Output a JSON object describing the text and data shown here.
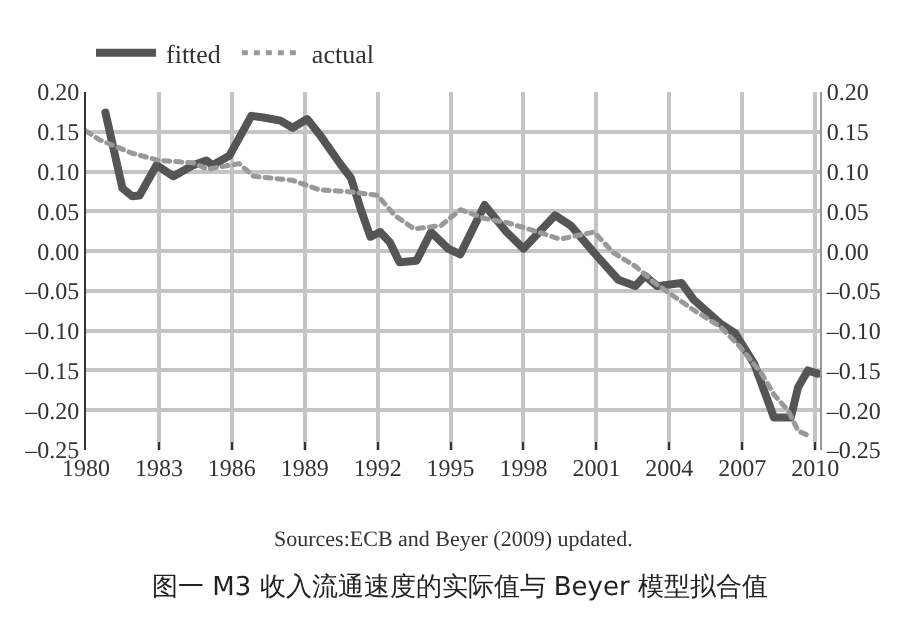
{
  "chart_data": {
    "type": "line",
    "title": "图一 M3 收入流通速度的实际值与 Beyer 模型拟合值",
    "annotations": [
      "Sources:ECB and Beyer (2009) updated."
    ],
    "series": [
      {
        "name": "fitted",
        "color": "#555555",
        "line_style": "solid",
        "x": [
          1980.8,
          1981.5,
          1981.9,
          1982.2,
          1982.9,
          1983.6,
          1984.4,
          1984.95,
          1985.2,
          1985.9,
          1986.3,
          1986.8,
          1987.3,
          1988.0,
          1988.5,
          1989.1,
          1989.6,
          1990.5,
          1990.9,
          1991.3,
          1991.7,
          1992.1,
          1992.5,
          1992.9,
          1993.6,
          1994.2,
          1994.9,
          1995.4,
          1996.4,
          1997.3,
          1998.0,
          1999.3,
          1999.95,
          2000.9,
          2001.9,
          2002.6,
          2003.0,
          2003.5,
          2004.5,
          2005.0,
          2006.1,
          2006.7,
          2007.5,
          2008.1,
          2008.3,
          2009.0,
          2009.3,
          2009.7,
          2010.1
        ],
        "values": [
          0.174,
          0.079,
          0.069,
          0.07,
          0.108,
          0.094,
          0.108,
          0.114,
          0.108,
          0.12,
          0.142,
          0.17,
          0.168,
          0.164,
          0.155,
          0.166,
          0.147,
          0.108,
          0.092,
          0.053,
          0.018,
          0.024,
          0.011,
          -0.014,
          -0.012,
          0.024,
          0.003,
          -0.004,
          0.058,
          0.024,
          0.003,
          0.045,
          0.032,
          -0.002,
          -0.036,
          -0.044,
          -0.031,
          -0.044,
          -0.04,
          -0.061,
          -0.091,
          -0.103,
          -0.142,
          -0.192,
          -0.209,
          -0.209,
          -0.171,
          -0.15,
          -0.154
        ]
      },
      {
        "name": "actual",
        "color": "#999999",
        "line_style": "dotted",
        "x": [
          1980.0,
          1980.55,
          1981.9,
          1983.0,
          1984.4,
          1985.0,
          1986.3,
          1986.9,
          1988.5,
          1989.6,
          1990.7,
          1992.0,
          1992.7,
          1993.5,
          1994.6,
          1995.4,
          1995.7,
          1996.4,
          1997.3,
          1998.6,
          1999.5,
          2000.9,
          2001.7,
          2002.6,
          2003.4,
          2004.2,
          2005.0,
          2006.1,
          2006.9,
          2007.8,
          2008.3,
          2008.9,
          2009.3,
          2009.8
        ],
        "values": [
          0.151,
          0.14,
          0.123,
          0.114,
          0.111,
          0.103,
          0.11,
          0.094,
          0.089,
          0.077,
          0.075,
          0.07,
          0.045,
          0.028,
          0.032,
          0.052,
          0.049,
          0.041,
          0.036,
          0.024,
          0.015,
          0.024,
          -0.002,
          -0.019,
          -0.04,
          -0.057,
          -0.074,
          -0.095,
          -0.12,
          -0.154,
          -0.18,
          -0.201,
          -0.226,
          -0.233
        ]
      }
    ],
    "xlim": [
      1980,
      2010.2
    ],
    "xticks": [
      1980,
      1983,
      1986,
      1989,
      1992,
      1995,
      1998,
      2001,
      2004,
      2007,
      2010
    ],
    "ylim": [
      -0.25,
      0.2
    ],
    "yticks": [
      {
        "value": 0.2,
        "label": "0.20"
      },
      {
        "value": 0.15,
        "label": "0.15"
      },
      {
        "value": 0.1,
        "label": "0.10"
      },
      {
        "value": 0.05,
        "label": "0.05"
      },
      {
        "value": 0,
        "label": "0.00"
      },
      {
        "value": -0.05,
        "label": "–0.05"
      },
      {
        "value": -0.1,
        "label": "–0.10"
      },
      {
        "value": -0.15,
        "label": "–0.15"
      },
      {
        "value": -0.2,
        "label": "–0.20"
      },
      {
        "value": -0.25,
        "label": "–0.25"
      }
    ],
    "y2lim": [
      -0.25,
      0.2
    ],
    "y2ticks": [
      {
        "value": 0.2,
        "label": "0.20"
      },
      {
        "value": 0.15,
        "label": "0.15"
      },
      {
        "value": 0.1,
        "label": "0.10"
      },
      {
        "value": 0.05,
        "label": "0.05"
      },
      {
        "value": 0,
        "label": "0.00"
      },
      {
        "value": -0.05,
        "label": "–0.05"
      },
      {
        "value": -0.1,
        "label": "–0.10"
      },
      {
        "value": -0.15,
        "label": "–0.15"
      },
      {
        "value": -0.2,
        "label": "–0.20"
      },
      {
        "value": -0.25,
        "label": "–0.25"
      }
    ],
    "grid": true,
    "legend": "top left",
    "marker": "none"
  }
}
